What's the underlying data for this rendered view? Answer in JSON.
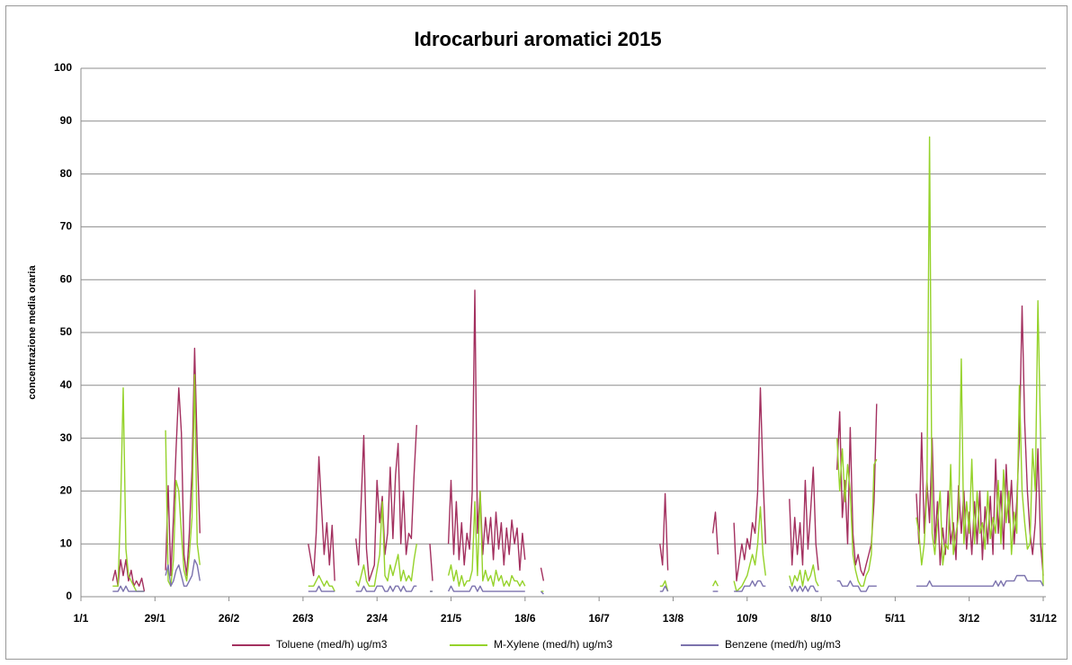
{
  "chart_data": {
    "type": "line",
    "title": "Idrocarburi aromatici 2015",
    "y_label": "concentrazione media oraria",
    "x": [
      12,
      13,
      14,
      15,
      16,
      17,
      18,
      19,
      20,
      21,
      22,
      23,
      24,
      26,
      32,
      33,
      34,
      35,
      36,
      37,
      38,
      39,
      40,
      41,
      42,
      43,
      44,
      45,
      60,
      86,
      87,
      88,
      89,
      90,
      91,
      92,
      93,
      94,
      95,
      96,
      100,
      104,
      105,
      106,
      107,
      108,
      109,
      111,
      112,
      113,
      114,
      115,
      116,
      117,
      118,
      119,
      120,
      121,
      122,
      123,
      124,
      125,
      126,
      127,
      129,
      132,
      133,
      136,
      139,
      140,
      141,
      142,
      143,
      144,
      145,
      146,
      147,
      148,
      149,
      150,
      151,
      152,
      153,
      154,
      155,
      156,
      157,
      158,
      159,
      160,
      161,
      162,
      163,
      164,
      165,
      166,
      167,
      168,
      171,
      174,
      175,
      200,
      219,
      220,
      221,
      222,
      230,
      239,
      240,
      241,
      244,
      247,
      248,
      250,
      251,
      252,
      253,
      254,
      255,
      256,
      257,
      258,
      259,
      263,
      268,
      269,
      270,
      271,
      272,
      273,
      274,
      275,
      276,
      277,
      278,
      279,
      283,
      286,
      287,
      288,
      289,
      290,
      291,
      292,
      293,
      294,
      295,
      296,
      297,
      298,
      299,
      300,
      301,
      305,
      316,
      317,
      318,
      319,
      320,
      321,
      322,
      323,
      324,
      325,
      326,
      327,
      328,
      329,
      330,
      331,
      332,
      333,
      334,
      335,
      336,
      337,
      338,
      339,
      340,
      341,
      342,
      343,
      344,
      345,
      346,
      347,
      348,
      349,
      350,
      351,
      352,
      353,
      354,
      355,
      356,
      357,
      358,
      359,
      360,
      361,
      362,
      363,
      364
    ],
    "series": [
      {
        "name": "Toluene (med/h) ug/m3",
        "color": "#a3305f",
        "values": [
          3,
          5,
          2,
          7,
          4,
          7,
          3,
          5,
          2,
          3,
          2,
          3.5,
          1,
          null,
          5,
          21,
          4,
          15,
          28,
          39.5,
          31,
          8,
          4,
          12,
          24,
          47,
          28,
          12,
          null,
          10,
          7,
          4,
          12,
          26.5,
          17,
          8,
          14,
          6,
          13.5,
          3,
          null,
          11,
          6,
          18,
          30.5,
          9,
          3,
          6,
          22,
          14,
          19,
          8,
          12,
          24.5,
          11,
          23,
          29,
          10,
          20,
          8,
          12,
          11,
          23,
          32.5,
          null,
          10,
          3,
          null,
          10,
          22,
          8,
          18,
          7,
          14,
          6,
          12,
          9,
          20,
          58,
          12,
          20,
          8,
          15,
          10,
          15,
          7,
          16,
          9,
          14,
          6,
          13,
          8,
          14.5,
          10,
          13,
          5,
          12,
          7,
          null,
          5.5,
          3,
          null,
          10,
          6,
          19.5,
          5,
          null,
          12,
          16,
          8,
          null,
          14,
          3,
          10,
          7,
          11,
          9,
          14,
          12,
          20,
          39.5,
          23,
          10,
          null,
          18.5,
          6,
          15,
          8,
          14,
          6,
          22,
          9,
          16,
          24.5,
          10,
          5,
          null,
          24,
          35,
          15,
          22,
          10,
          32,
          12,
          6,
          8,
          5,
          4,
          6,
          8,
          10,
          18,
          36.5,
          null,
          19.5,
          10,
          31,
          12,
          22,
          14,
          30,
          10,
          18,
          6,
          13,
          8,
          20,
          10,
          14,
          7,
          21,
          12,
          20,
          9,
          16,
          8,
          18,
          10,
          20,
          7,
          17,
          10,
          19,
          8,
          26,
          12,
          20,
          9,
          25,
          14,
          22,
          10,
          18,
          30,
          55,
          33,
          20,
          12,
          8,
          14,
          28,
          10,
          4
        ]
      },
      {
        "name": "M-Xylene (med/h) ug/m3",
        "color": "#95d22a",
        "values": [
          2,
          2,
          2,
          17,
          39.5,
          9,
          4,
          3,
          2,
          1,
          1,
          1,
          1,
          null,
          31.5,
          3,
          2,
          7,
          22,
          20,
          12,
          5,
          3,
          8,
          15,
          42,
          10,
          6,
          null,
          2,
          2,
          2,
          3,
          4,
          3,
          2,
          3,
          2,
          2,
          1,
          null,
          3,
          2,
          4,
          6,
          3,
          2,
          2,
          5,
          8,
          18,
          4,
          3,
          6,
          4,
          6,
          8,
          3,
          5,
          3,
          4,
          3,
          7,
          10,
          null,
          1,
          1,
          null,
          4,
          6,
          3,
          5,
          2,
          4,
          2,
          3,
          3,
          5,
          18,
          4,
          20,
          3,
          5,
          3,
          4,
          2,
          5,
          3,
          4,
          2,
          3,
          2,
          4,
          3,
          3,
          2,
          3,
          2,
          null,
          1,
          1,
          null,
          2,
          2,
          3,
          1,
          null,
          2,
          3,
          2,
          null,
          3,
          1,
          2,
          3,
          4,
          6,
          8,
          6,
          10,
          17,
          8,
          4,
          null,
          4,
          2,
          4,
          3,
          5,
          2,
          5,
          3,
          4,
          6,
          3,
          2,
          null,
          30,
          20,
          28,
          18,
          25,
          20,
          8,
          5,
          3,
          2,
          2,
          4,
          5,
          8,
          25,
          26,
          null,
          15,
          12,
          6,
          10,
          20,
          87,
          12,
          8,
          14,
          20,
          6,
          10,
          9,
          25,
          8,
          12,
          15,
          45,
          10,
          18,
          12,
          26,
          10,
          20,
          12,
          14,
          9,
          20,
          11,
          15,
          12,
          22,
          10,
          24,
          14,
          20,
          8,
          16,
          12,
          40,
          20,
          14,
          9,
          10,
          28,
          20,
          56,
          30,
          2
        ]
      },
      {
        "name": "Benzene (med/h) ug/m3",
        "color": "#7b72ad",
        "values": [
          1,
          1,
          1,
          2,
          1,
          2,
          1,
          1,
          1,
          1,
          1,
          1,
          1,
          null,
          4,
          6,
          2,
          3,
          5,
          6,
          4,
          2,
          2,
          3,
          4,
          7,
          6,
          3,
          null,
          1,
          1,
          1,
          1,
          2,
          1,
          1,
          1,
          1,
          1,
          1,
          null,
          1,
          1,
          1,
          2,
          1,
          1,
          1,
          2,
          2,
          2,
          1,
          1,
          2,
          1,
          2,
          2,
          1,
          2,
          1,
          1,
          1,
          2,
          2,
          null,
          1,
          1,
          null,
          1,
          2,
          1,
          1,
          1,
          1,
          1,
          1,
          1,
          2,
          2,
          1,
          2,
          1,
          1,
          1,
          1,
          1,
          1,
          1,
          1,
          1,
          1,
          1,
          1,
          1,
          1,
          1,
          1,
          1,
          null,
          1,
          0.5,
          null,
          1,
          1,
          2,
          1,
          null,
          1,
          1,
          1,
          null,
          1,
          1,
          1,
          2,
          2,
          2,
          3,
          2,
          3,
          3,
          2,
          2,
          null,
          2,
          1,
          2,
          1,
          2,
          1,
          2,
          1,
          2,
          2,
          1,
          1,
          null,
          3,
          3,
          2,
          2,
          2,
          3,
          2,
          2,
          2,
          1,
          1,
          1,
          2,
          2,
          2,
          2,
          null,
          2,
          2,
          2,
          2,
          2,
          3,
          2,
          2,
          2,
          2,
          2,
          2,
          2,
          2,
          2,
          2,
          2,
          2,
          2,
          2,
          2,
          2,
          2,
          2,
          2,
          2,
          2,
          2,
          2,
          2,
          3,
          2,
          3,
          2,
          3,
          3,
          3,
          3,
          4,
          4,
          4,
          4,
          3,
          3,
          3,
          3,
          3,
          3,
          2
        ]
      }
    ],
    "xlim": [
      0,
      364
    ],
    "xticks": [
      {
        "value": 0,
        "label": "1/1"
      },
      {
        "value": 28,
        "label": "29/1"
      },
      {
        "value": 56,
        "label": "26/2"
      },
      {
        "value": 84,
        "label": "26/3"
      },
      {
        "value": 112,
        "label": "23/4"
      },
      {
        "value": 140,
        "label": "21/5"
      },
      {
        "value": 168,
        "label": "18/6"
      },
      {
        "value": 196,
        "label": "16/7"
      },
      {
        "value": 224,
        "label": "13/8"
      },
      {
        "value": 252,
        "label": "10/9"
      },
      {
        "value": 280,
        "label": "8/10"
      },
      {
        "value": 308,
        "label": "5/11"
      },
      {
        "value": 336,
        "label": "3/12"
      },
      {
        "value": 364,
        "label": "31/12"
      }
    ],
    "ylim": [
      0,
      100
    ],
    "yticks": [
      0,
      10,
      20,
      30,
      40,
      50,
      60,
      70,
      80,
      90,
      100
    ],
    "grid": true,
    "legend": "bottom"
  }
}
